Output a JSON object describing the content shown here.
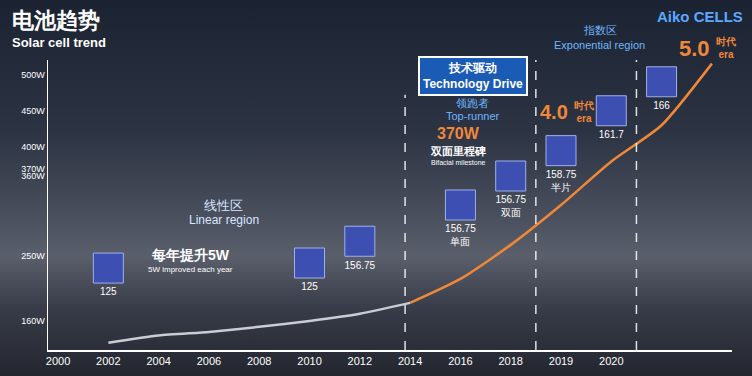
{
  "chart_data": {
    "type": "line",
    "title": "电池趋势",
    "subtitle": "Solar cell trend",
    "logo": "Aiko CELLS",
    "categories": [
      "2000",
      "2002",
      "2004",
      "2006",
      "2008",
      "2010",
      "2012",
      "2014",
      "2016",
      "2018",
      "2019",
      "2020",
      null,
      null
    ],
    "series": [
      {
        "color": "#c9ccd2",
        "line_style": "solid",
        "values": [
          null,
          130,
          140,
          145,
          152,
          160,
          170,
          185,
          null,
          null,
          null,
          null,
          null,
          null
        ]
      },
      {
        "color": "#f0883a",
        "line_style": "solid",
        "values": [
          null,
          null,
          null,
          null,
          null,
          null,
          null,
          185,
          218,
          265,
          320,
          380,
          430,
          515
        ]
      },
      {
        "type": "scatter",
        "marker": "square",
        "color": "#3d4fb0",
        "values": [
          null,
          233,
          null,
          null,
          null,
          240,
          270,
          null,
          320,
          360,
          395,
          450,
          490,
          null
        ],
        "labels": [
          null,
          "125",
          null,
          null,
          null,
          "125",
          "156.75",
          null,
          "156.75\n单面",
          "156.75\n双面",
          "158.75\n半片",
          "161.7",
          "166",
          null
        ]
      }
    ],
    "ylim": [
      120,
      520
    ],
    "yticks": [
      {
        "value": 160,
        "label": "160W"
      },
      {
        "value": 250,
        "label": "250W"
      },
      {
        "value": 360,
        "label": "360W"
      },
      {
        "value": 370,
        "label": "370W"
      },
      {
        "value": 400,
        "label": "400W"
      },
      {
        "value": 450,
        "label": "450W"
      },
      {
        "value": 500,
        "label": "500W"
      }
    ],
    "grid": false,
    "annotations": {
      "linear_region": [
        "线性区",
        "Linear region"
      ],
      "improvement": [
        "每年提升5W",
        "5W improved each year"
      ],
      "technology_drive": [
        "技术驱动",
        "Technology Drive"
      ],
      "top_runner": [
        "领跑者",
        "Top-runner"
      ],
      "bifacial": [
        "370W",
        "双面里程碑",
        "Bifacial milestone"
      ],
      "exponential_region": [
        "指数区",
        "Exponential region"
      ],
      "era4": [
        "4.0",
        "时代",
        "era"
      ],
      "era5": [
        "5.0",
        "时代",
        "era"
      ]
    }
  }
}
